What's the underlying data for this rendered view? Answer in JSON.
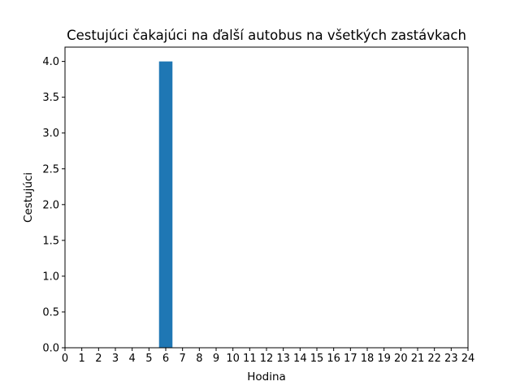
{
  "chart_data": {
    "type": "bar",
    "title": "Cestujúci čakajúci na ďalší autobus na všetkých zastávkach",
    "xlabel": "Hodina",
    "ylabel": "Cestujúci",
    "xlim": [
      0,
      24
    ],
    "ylim": [
      0,
      4.2
    ],
    "xticks": [
      "0",
      "1",
      "2",
      "3",
      "4",
      "5",
      "6",
      "7",
      "8",
      "9",
      "10",
      "11",
      "12",
      "13",
      "14",
      "15",
      "16",
      "17",
      "18",
      "19",
      "20",
      "21",
      "22",
      "23",
      "24"
    ],
    "yticks": [
      "0.0",
      "0.5",
      "1.0",
      "1.5",
      "2.0",
      "2.5",
      "3.0",
      "3.5",
      "4.0"
    ],
    "bar_width": 0.8,
    "grid": false,
    "color": "#1f77b4",
    "bars": [
      {
        "x": 6,
        "value": 4
      }
    ]
  }
}
